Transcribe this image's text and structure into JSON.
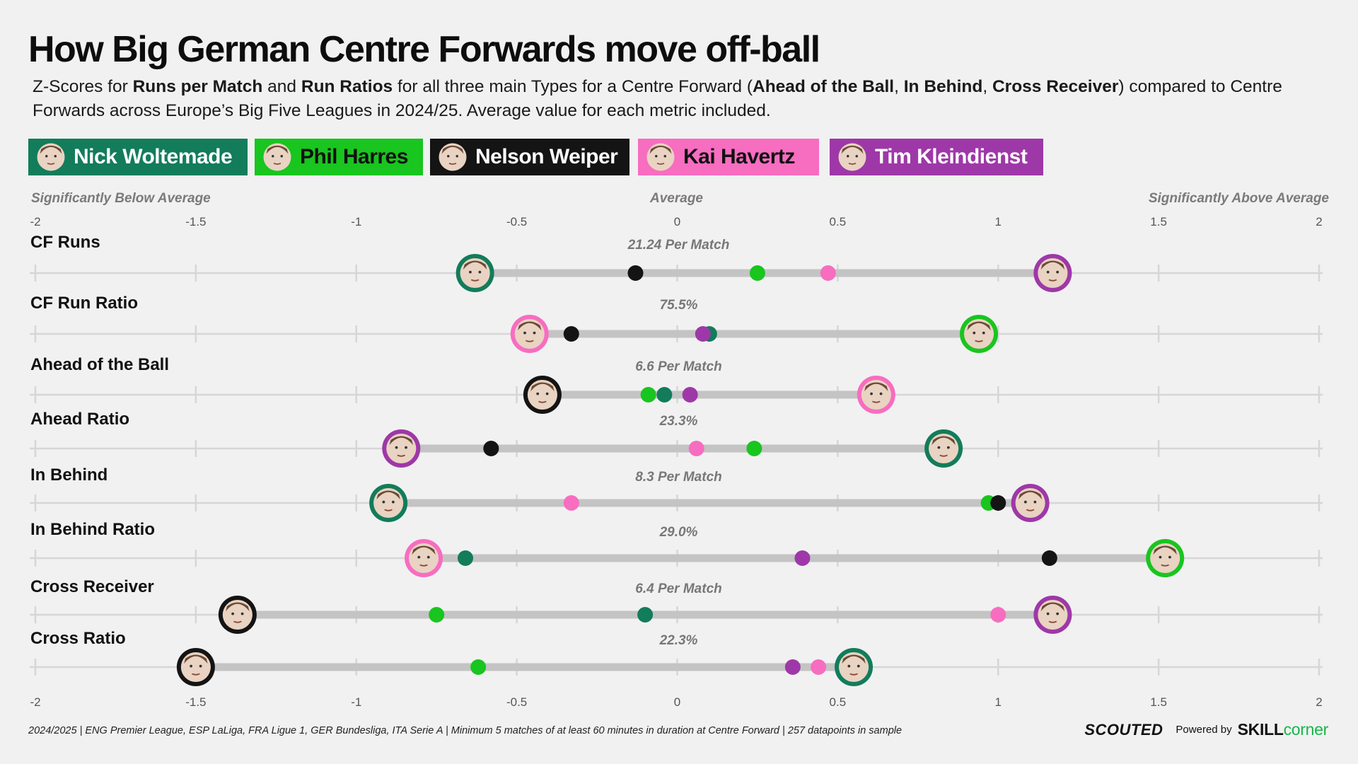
{
  "title": "How Big German Centre Forwards move off-ball",
  "subtitle": {
    "p1": "Z-Scores for ",
    "b1": "Runs per Match",
    "p2": " and ",
    "b2": "Run Ratios",
    "p3": " for all three main Types for a Centre Forward (",
    "b3": "Ahead of the Ball",
    "p4": ", ",
    "b4": "In Behind",
    "p5": ", ",
    "b5": "Cross Receiver",
    "p6": ") compared to Centre Forwards across Europe’s Big Five Leagues in 2024/25. Average value for each metric included."
  },
  "legend": [
    {
      "name": "Nick Woltemade",
      "key": "woltemade",
      "color": "#127c5b",
      "text_color": "#ffffff",
      "icon": "player-headshot-icon"
    },
    {
      "name": "Phil Harres",
      "key": "harres",
      "color": "#19c51f",
      "text_color": "#111111",
      "icon": "player-headshot-icon"
    },
    {
      "name": "Nelson Weiper",
      "key": "weiper",
      "color": "#141414",
      "text_color": "#ffffff",
      "icon": "player-headshot-icon"
    },
    {
      "name": "Kai Havertz",
      "key": "havertz",
      "color": "#f76dc0",
      "text_color": "#111111",
      "icon": "player-headshot-icon"
    },
    {
      "name": "Tim Kleindienst",
      "key": "kleindienst",
      "color": "#9e38a8",
      "text_color": "#ffffff",
      "icon": "player-headshot-icon"
    }
  ],
  "band_labels": {
    "left": "Significantly Below Average",
    "center": "Average",
    "right": "Significantly Above Average"
  },
  "chart_data": {
    "type": "scatter",
    "xlim": [
      -2,
      2
    ],
    "x_ticks": [
      -2,
      -1.5,
      -1,
      -0.5,
      0,
      0.5,
      1,
      1.5,
      2
    ],
    "x_tick_labels": [
      "-2",
      "-1.5",
      "-1",
      "-0.5",
      "0",
      "0.5",
      "1",
      "1.5",
      "2"
    ],
    "grid": true,
    "players": [
      "woltemade",
      "harres",
      "weiper",
      "havertz",
      "kleindienst"
    ],
    "metrics": [
      {
        "label": "CF Runs",
        "average": "21.24 Per Match",
        "values": {
          "woltemade": -0.63,
          "harres": 0.25,
          "weiper": -0.13,
          "havertz": 0.47,
          "kleindienst": 1.17
        }
      },
      {
        "label": "CF Run Ratio",
        "average": "75.5%",
        "values": {
          "woltemade": 0.1,
          "harres": 0.94,
          "weiper": -0.33,
          "havertz": -0.46,
          "kleindienst": 0.08
        }
      },
      {
        "label": "Ahead of the Ball",
        "average": "6.6 Per Match",
        "values": {
          "woltemade": -0.04,
          "harres": -0.09,
          "weiper": -0.42,
          "havertz": 0.62,
          "kleindienst": 0.04
        }
      },
      {
        "label": "Ahead Ratio",
        "average": "23.3%",
        "values": {
          "woltemade": 0.83,
          "harres": 0.24,
          "weiper": -0.58,
          "havertz": 0.06,
          "kleindienst": -0.86
        }
      },
      {
        "label": "In Behind",
        "average": "8.3 Per Match",
        "values": {
          "woltemade": -0.9,
          "harres": 0.97,
          "weiper": 1.0,
          "havertz": -0.33,
          "kleindienst": 1.1
        }
      },
      {
        "label": "In Behind Ratio",
        "average": "29.0%",
        "values": {
          "woltemade": -0.66,
          "harres": 1.52,
          "weiper": 1.16,
          "havertz": -0.79,
          "kleindienst": 0.39
        }
      },
      {
        "label": "Cross Receiver",
        "average": "6.4 Per Match",
        "values": {
          "woltemade": -0.1,
          "harres": -0.75,
          "weiper": -1.37,
          "havertz": 1.0,
          "kleindienst": 1.17
        }
      },
      {
        "label": "Cross Ratio",
        "average": "22.3%",
        "values": {
          "woltemade": 0.55,
          "harres": -0.62,
          "weiper": -1.5,
          "havertz": 0.44,
          "kleindienst": 0.36
        }
      }
    ]
  },
  "footer": "2024/2025 | ENG Premier League, ESP LaLiga, FRA Ligue 1, GER Bundesliga, ITA Serie A | Minimum 5 matches of at least 60 minutes in duration at Centre Forward | 257 datapoints in sample",
  "brand": {
    "scouted": "SCOUTED",
    "powered": "Powered by",
    "skill": "SKILL",
    "corner": "corner"
  }
}
